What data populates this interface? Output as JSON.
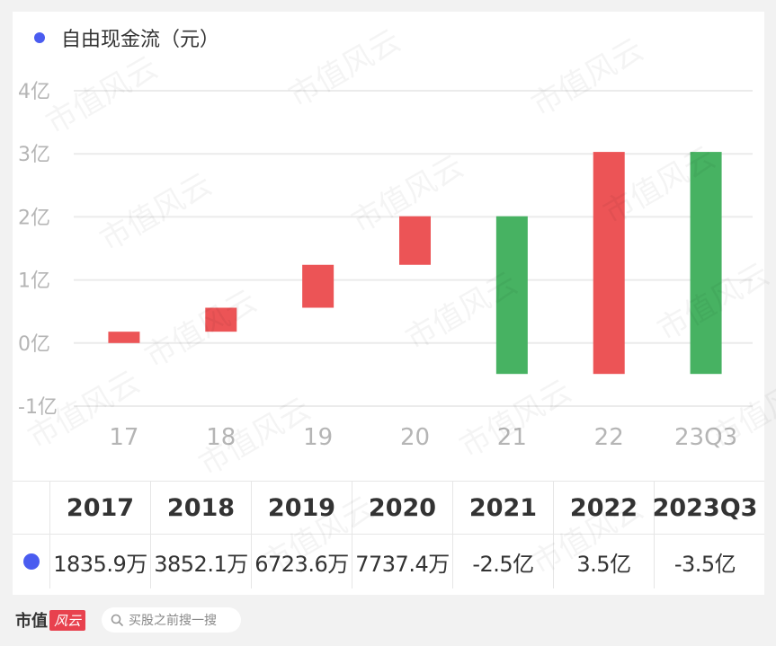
{
  "legend": {
    "label": "自由现金流（元）",
    "color": "#4a5cf0"
  },
  "chart_data": {
    "type": "bar",
    "subtype": "floating-bar",
    "categories": [
      "17",
      "18",
      "19",
      "20",
      "21",
      "22",
      "23Q3"
    ],
    "series": [
      {
        "name": "自由现金流（元）",
        "start": [
          0,
          0.18,
          0.56,
          1.24,
          2.01,
          -0.49,
          3.03
        ],
        "end": [
          0.18,
          0.56,
          1.24,
          2.01,
          -0.49,
          3.03,
          -0.49
        ],
        "values_label": [
          "1835.9万",
          "3852.1万",
          "6723.6万",
          "7737.4万",
          "-2.5亿",
          "3.5亿",
          "-3.5亿"
        ]
      }
    ],
    "y_ticks": [
      "-1亿",
      "0亿",
      "1亿",
      "2亿",
      "3亿",
      "4亿"
    ],
    "ylim": [
      -1,
      4
    ],
    "colors": {
      "positive": "#ec5456",
      "negative": "#47b262"
    },
    "grid": true
  },
  "table": {
    "years": [
      "2017",
      "2018",
      "2019",
      "2020",
      "2021",
      "2022",
      "2023Q3"
    ],
    "values": [
      "1835.9万",
      "3852.1万",
      "6723.6万",
      "7737.4万",
      "-2.5亿",
      "3.5亿",
      "-3.5亿"
    ],
    "marker_color": "#4a5cf0"
  },
  "footer": {
    "brand": "市值",
    "brand_logo": "风云",
    "search_placeholder": "买股之前搜一搜"
  },
  "watermark": "市值风云"
}
